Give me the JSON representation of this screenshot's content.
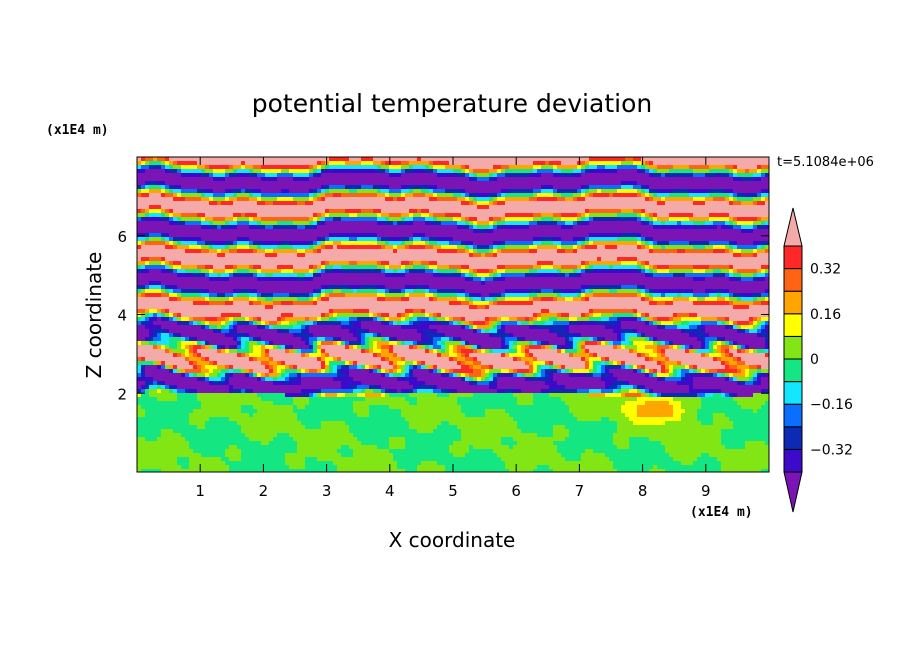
{
  "chart_data": {
    "type": "heatmap",
    "title": "potential temperature deviation",
    "xlabel": "X coordinate",
    "ylabel": "Z coordinate",
    "x_unit_label": "(x1E4 m)",
    "y_unit_label": "(x1E4 m)",
    "time_label": "t=5.1084e+06",
    "xlim": [
      0,
      10
    ],
    "ylim": [
      0,
      8
    ],
    "x_ticks": [
      "1",
      "2",
      "3",
      "4",
      "5",
      "6",
      "7",
      "8",
      "9"
    ],
    "y_ticks": [
      "2",
      "4",
      "6"
    ],
    "colorbar": {
      "tick_labels": [
        "0.32",
        "0.16",
        "0",
        "−0.16",
        "−0.32"
      ],
      "tick_values": [
        0.32,
        0.16,
        0,
        -0.16,
        -0.32
      ],
      "levels": [
        -0.4,
        -0.32,
        -0.24,
        -0.16,
        -0.08,
        0,
        0.08,
        0.16,
        0.24,
        0.32,
        0.4
      ],
      "colors": [
        "#7a14b4",
        "#3c0ac8",
        "#0c2ab4",
        "#0a6eff",
        "#14e6ff",
        "#14e682",
        "#82e614",
        "#ffff00",
        "#ffa500",
        "#ff6414",
        "#ff2828",
        "#f4aaa8"
      ],
      "extend": "both"
    }
  }
}
